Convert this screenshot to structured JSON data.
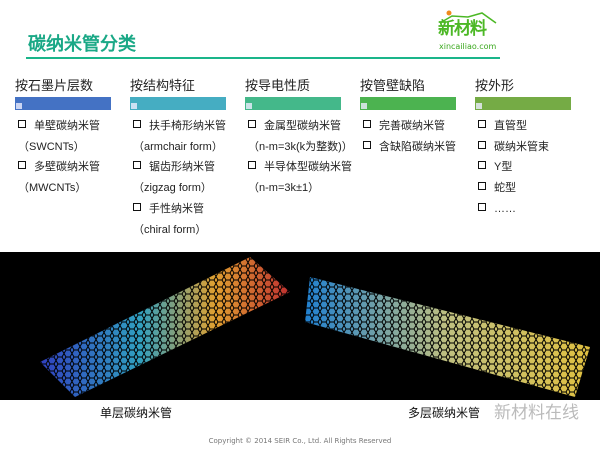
{
  "title": "碳纳米管分类",
  "logo": {
    "cn": "新材料",
    "en": "xincailiao.com",
    "color": "#4cb825"
  },
  "accent": "#1ab58a",
  "categories": [
    {
      "heading": "按石墨片层数",
      "color": "#4472c4",
      "items": [
        {
          "box": true,
          "text": "单壁碳纳米管"
        },
        {
          "box": false,
          "text": "（SWCNTs）"
        },
        {
          "box": true,
          "text": "多壁碳纳米管"
        },
        {
          "box": false,
          "text": "（MWCNTs）"
        }
      ]
    },
    {
      "heading": "按结构特征",
      "color": "#45adc2",
      "items": [
        {
          "box": true,
          "text": "扶手椅形纳米管"
        },
        {
          "box": false,
          "text": "（armchair form）"
        },
        {
          "box": true,
          "text": "锯齿形纳米管"
        },
        {
          "box": false,
          "text": "（zigzag form）"
        },
        {
          "box": true,
          "text": "手性纳米管"
        },
        {
          "box": false,
          "text": "（chiral form）"
        }
      ]
    },
    {
      "heading": "按导电性质",
      "color": "#44b88a",
      "items": [
        {
          "box": true,
          "text": "金属型碳纳米管"
        },
        {
          "box": false,
          "text": "（n-m=3k(k为整数)）"
        },
        {
          "box": true,
          "text": "半导体型碳纳米管"
        },
        {
          "box": false,
          "text": "（n-m=3k±1）"
        }
      ]
    },
    {
      "heading": "按管壁缺陷",
      "color": "#4cb350",
      "items": [
        {
          "box": true,
          "text": "完善碳纳米管"
        },
        {
          "box": true,
          "text": "含缺陷碳纳米管"
        }
      ]
    },
    {
      "heading": "按外形",
      "color": "#75ab45",
      "items": [
        {
          "box": true,
          "text": "直管型"
        },
        {
          "box": true,
          "text": "碳纳米管束"
        },
        {
          "box": true,
          "text": "Y型"
        },
        {
          "box": true,
          "text": "蛇型"
        },
        {
          "box": true,
          "text": "……"
        }
      ]
    }
  ],
  "captions": {
    "single": "单层碳纳米管",
    "multi": "多层碳纳米管"
  },
  "watermark": "新材料在线",
  "copyright": "Copyright © 2014  SEIR Co., Ltd. All Rights Reserved"
}
